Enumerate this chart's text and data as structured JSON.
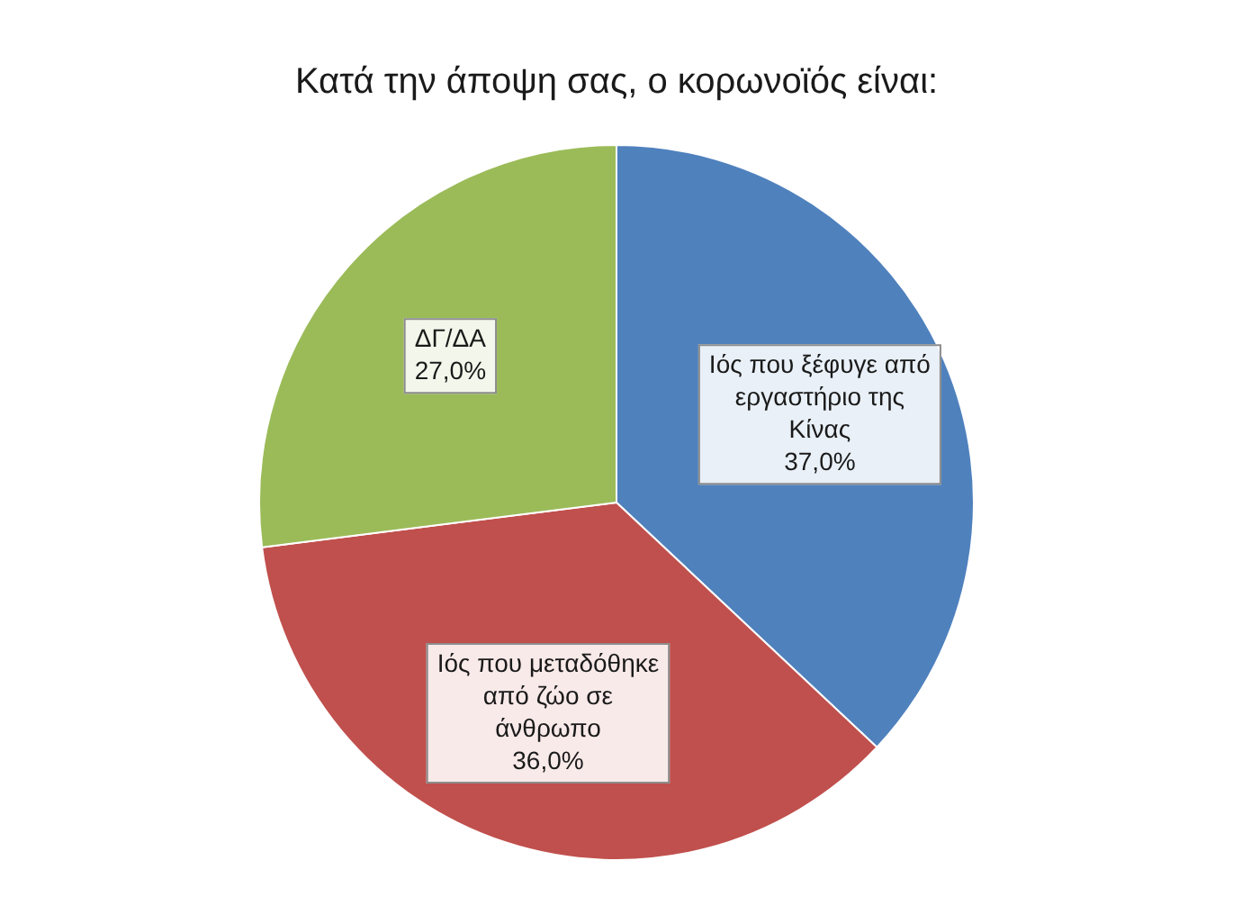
{
  "chart_data": {
    "type": "pie",
    "title": "Κατά την άποψη σας, ο κορωνοϊός είναι:",
    "categories": [
      "Ιός που ξέφυγε από εργαστήριο της Κίνας",
      "Ιός που μεταδόθηκε από ζώο σε άνθρωπο",
      "ΔΓ/ΔΑ"
    ],
    "values": [
      37,
      36,
      27
    ],
    "colors": [
      "#4f81bd",
      "#c0504d",
      "#9bbb59"
    ],
    "value_labels": [
      "37,0%",
      "36,0%",
      "27,0%"
    ],
    "legend": false
  }
}
